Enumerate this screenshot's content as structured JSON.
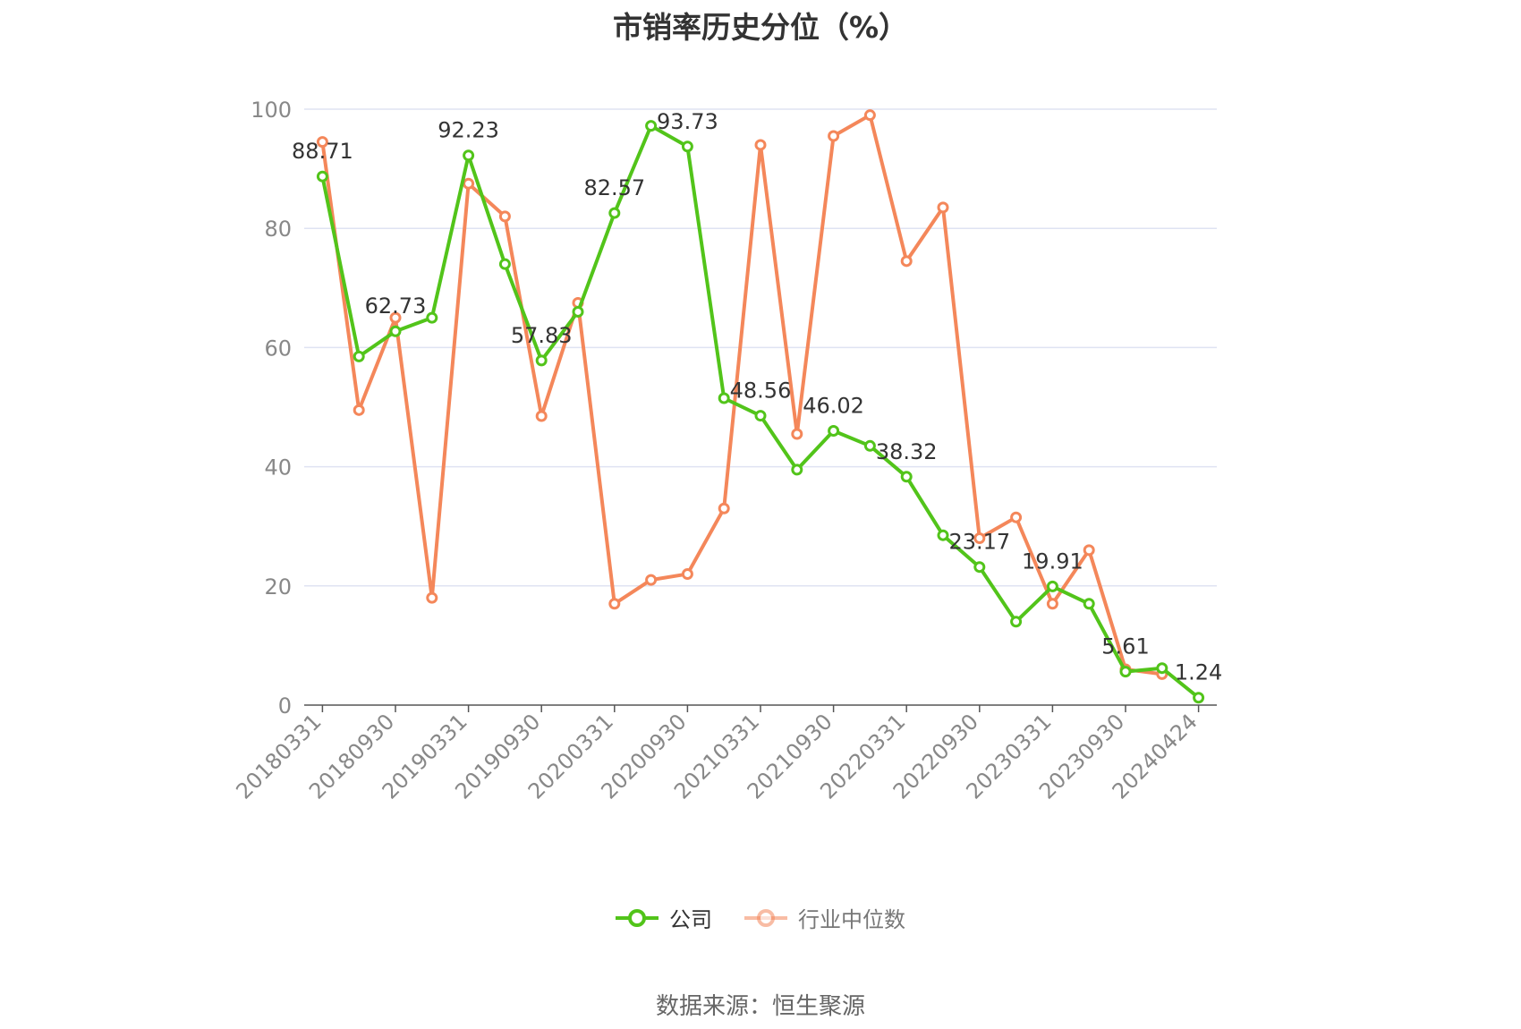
{
  "page": {
    "title": "市销率历史分位（%）",
    "source": "数据来源：恒生聚源"
  },
  "legend": {
    "company": "公司",
    "industry": "行业中位数"
  },
  "colors": {
    "company": "#52c41a",
    "industry": "#f4875a",
    "grid": "#dfe3f2",
    "axis": "#555555"
  },
  "chart_data": {
    "type": "line",
    "title": "市销率历史分位（%）",
    "x": [
      "20180331",
      "20180630",
      "20180930",
      "20181231",
      "20190331",
      "20190630",
      "20190930",
      "20191231",
      "20200331",
      "20200630",
      "20200930",
      "20201231",
      "20210331",
      "20210630",
      "20210930",
      "20211231",
      "20220331",
      "20220630",
      "20220930",
      "20221231",
      "20230331",
      "20230630",
      "20230930",
      "20231231",
      "20240424"
    ],
    "x_tick_labels": [
      "20180331",
      "20180930",
      "20190331",
      "20190930",
      "20200331",
      "20200930",
      "20210331",
      "20210930",
      "20220331",
      "20220930",
      "20230331",
      "20230930",
      "20240424"
    ],
    "ylim": [
      0,
      100
    ],
    "yticks": [
      0,
      20,
      40,
      60,
      80,
      100
    ],
    "grid": true,
    "legend_position": "bottom",
    "series": [
      {
        "name": "公司",
        "values": [
          88.71,
          58.5,
          62.73,
          65.0,
          92.23,
          74.0,
          57.83,
          66.0,
          82.57,
          97.2,
          93.73,
          51.5,
          48.56,
          39.5,
          46.02,
          43.5,
          38.32,
          28.5,
          23.17,
          14.0,
          19.91,
          17.0,
          5.61,
          6.2,
          1.24
        ],
        "labels": [
          "88.71",
          "",
          "62.73",
          "",
          "92.23",
          "",
          "57.83",
          "",
          "82.57",
          "",
          "93.73",
          "",
          "48.56",
          "",
          "46.02",
          "",
          "38.32",
          "",
          "23.17",
          "",
          "19.91",
          "",
          "5.61",
          "",
          "1.24"
        ]
      },
      {
        "name": "行业中位数",
        "values": [
          94.5,
          49.5,
          65.0,
          18.0,
          87.5,
          82.0,
          48.5,
          67.5,
          17.0,
          21.0,
          22.0,
          33.0,
          94.0,
          45.5,
          95.5,
          99.0,
          74.5,
          83.5,
          28.0,
          31.5,
          17.0,
          26.0,
          6.0,
          5.2,
          null
        ]
      }
    ]
  }
}
